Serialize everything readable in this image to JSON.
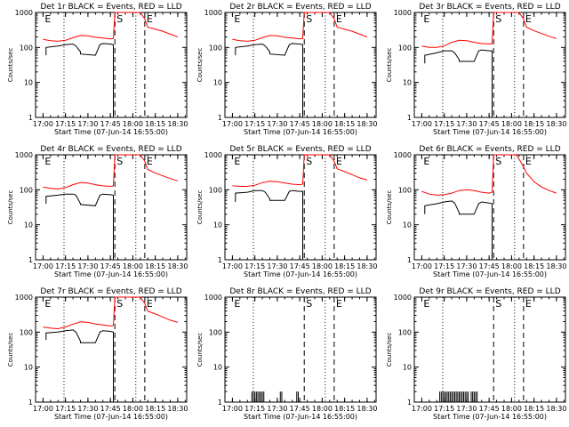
{
  "xlabel": "Start Time (07-Jun-14 16:55:00)",
  "ylabel": "Counts/sec",
  "x_ticks": [
    "17:00",
    "17:15",
    "17:30",
    "17:45",
    "18:00",
    "18:15",
    "18:30"
  ],
  "y_ticks": [
    "1",
    "10",
    "100",
    "1000"
  ],
  "colors": {
    "events": "#000000",
    "lld": "#ff0000",
    "axes": "#000000"
  },
  "chart_data": [
    {
      "type": "line",
      "title": "Det 1r BLACK = Events, RED = LLD",
      "markers": [
        {
          "label": "E",
          "time": "17:00",
          "style": "none"
        },
        {
          "label": "S",
          "time": "17:48",
          "style": "dashed"
        },
        {
          "label": "E",
          "time": "18:08",
          "style": "dashed"
        }
      ],
      "dotted_lines": [
        "17:14",
        "18:02"
      ],
      "series": [
        {
          "name": "LLD",
          "color": "#ff0000",
          "x": [
            "17:00",
            "17:05",
            "17:10",
            "17:15",
            "17:20",
            "17:25",
            "17:30",
            "17:35",
            "17:40",
            "17:45",
            "17:47",
            "17:48",
            "18:05",
            "18:08",
            "18:10",
            "18:15",
            "18:20",
            "18:25",
            "18:30"
          ],
          "y": [
            170,
            155,
            150,
            160,
            190,
            220,
            215,
            195,
            185,
            175,
            180,
            1000,
            1000,
            650,
            380,
            330,
            290,
            240,
            200
          ]
        },
        {
          "name": "Events",
          "color": "#000000",
          "x": [
            "17:02",
            "17:02",
            "17:10",
            "17:15",
            "17:20",
            "17:22",
            "17:25",
            "17:25",
            "17:35",
            "17:38",
            "17:40",
            "17:45",
            "17:47",
            "17:47",
            "17:47"
          ],
          "y": [
            60,
            100,
            110,
            120,
            125,
            110,
            75,
            65,
            60,
            120,
            130,
            125,
            120,
            1,
            1
          ]
        }
      ]
    },
    {
      "type": "line",
      "title": "Det 2r BLACK = Events, RED = LLD",
      "markers": [
        {
          "label": "E",
          "time": "17:00",
          "style": "none"
        },
        {
          "label": "S",
          "time": "17:48",
          "style": "dashed"
        },
        {
          "label": "E",
          "time": "18:08",
          "style": "dashed"
        }
      ],
      "dotted_lines": [
        "17:14",
        "18:02"
      ],
      "series": [
        {
          "name": "LLD",
          "color": "#ff0000",
          "x": [
            "17:00",
            "17:05",
            "17:10",
            "17:15",
            "17:20",
            "17:25",
            "17:30",
            "17:35",
            "17:40",
            "17:45",
            "17:47",
            "17:48",
            "18:05",
            "18:08",
            "18:10",
            "18:15",
            "18:20",
            "18:25",
            "18:30"
          ],
          "y": [
            170,
            155,
            150,
            160,
            190,
            220,
            215,
            195,
            185,
            175,
            180,
            1000,
            1000,
            650,
            380,
            330,
            290,
            240,
            200
          ]
        },
        {
          "name": "Events",
          "color": "#000000",
          "x": [
            "17:02",
            "17:02",
            "17:10",
            "17:15",
            "17:20",
            "17:22",
            "17:25",
            "17:25",
            "17:35",
            "17:38",
            "17:40",
            "17:45",
            "17:47",
            "17:47",
            "17:47"
          ],
          "y": [
            60,
            100,
            110,
            120,
            125,
            110,
            75,
            65,
            60,
            120,
            130,
            125,
            120,
            1,
            1
          ]
        }
      ]
    },
    {
      "type": "line",
      "title": "Det 3r BLACK = Events, RED = LLD",
      "markers": [
        {
          "label": "E",
          "time": "17:00",
          "style": "none"
        },
        {
          "label": "S",
          "time": "17:48",
          "style": "dashed"
        },
        {
          "label": "E",
          "time": "18:08",
          "style": "dashed"
        }
      ],
      "dotted_lines": [
        "17:14",
        "18:02"
      ],
      "series": [
        {
          "name": "LLD",
          "color": "#ff0000",
          "x": [
            "17:00",
            "17:05",
            "17:10",
            "17:15",
            "17:20",
            "17:25",
            "17:30",
            "17:35",
            "17:40",
            "17:45",
            "17:47",
            "17:48",
            "18:05",
            "18:08",
            "18:10",
            "18:15",
            "18:20",
            "18:25",
            "18:30"
          ],
          "y": [
            110,
            100,
            100,
            110,
            140,
            160,
            155,
            140,
            130,
            125,
            130,
            1000,
            1000,
            650,
            380,
            300,
            250,
            210,
            180
          ]
        },
        {
          "name": "Events",
          "color": "#000000",
          "x": [
            "17:02",
            "17:02",
            "17:10",
            "17:15",
            "17:20",
            "17:22",
            "17:25",
            "17:25",
            "17:35",
            "17:38",
            "17:40",
            "17:45",
            "17:47",
            "17:47",
            "17:47"
          ],
          "y": [
            35,
            60,
            70,
            80,
            80,
            70,
            45,
            40,
            40,
            80,
            85,
            80,
            80,
            1,
            1
          ]
        }
      ]
    },
    {
      "type": "line",
      "title": "Det 4r BLACK = Events, RED = LLD",
      "markers": [
        {
          "label": "E",
          "time": "17:00",
          "style": "none"
        },
        {
          "label": "S",
          "time": "17:48",
          "style": "dashed"
        },
        {
          "label": "E",
          "time": "18:08",
          "style": "dashed"
        }
      ],
      "dotted_lines": [
        "17:14",
        "18:02"
      ],
      "series": [
        {
          "name": "LLD",
          "color": "#ff0000",
          "x": [
            "17:00",
            "17:05",
            "17:10",
            "17:15",
            "17:20",
            "17:25",
            "17:30",
            "17:35",
            "17:40",
            "17:45",
            "17:47",
            "17:48",
            "18:05",
            "18:08",
            "18:10",
            "18:15",
            "18:20",
            "18:25",
            "18:30"
          ],
          "y": [
            120,
            110,
            105,
            115,
            140,
            160,
            155,
            140,
            130,
            125,
            130,
            1000,
            1000,
            650,
            380,
            300,
            250,
            210,
            180
          ]
        },
        {
          "name": "Events",
          "color": "#000000",
          "x": [
            "17:02",
            "17:02",
            "17:10",
            "17:15",
            "17:20",
            "17:22",
            "17:25",
            "17:25",
            "17:35",
            "17:38",
            "17:40",
            "17:45",
            "17:47",
            "17:47",
            "17:47"
          ],
          "y": [
            40,
            65,
            70,
            75,
            75,
            70,
            40,
            38,
            35,
            70,
            75,
            72,
            70,
            1,
            1
          ]
        }
      ]
    },
    {
      "type": "line",
      "title": "Det 5r BLACK = Events, RED = LLD",
      "markers": [
        {
          "label": "E",
          "time": "17:00",
          "style": "none"
        },
        {
          "label": "S",
          "time": "17:48",
          "style": "dashed"
        },
        {
          "label": "E",
          "time": "18:08",
          "style": "dashed"
        }
      ],
      "dotted_lines": [
        "17:14",
        "18:02"
      ],
      "series": [
        {
          "name": "LLD",
          "color": "#ff0000",
          "x": [
            "17:00",
            "17:05",
            "17:10",
            "17:15",
            "17:20",
            "17:25",
            "17:30",
            "17:35",
            "17:40",
            "17:45",
            "17:47",
            "17:48",
            "18:05",
            "18:08",
            "18:10",
            "18:15",
            "18:20",
            "18:25",
            "18:30"
          ],
          "y": [
            130,
            125,
            125,
            135,
            160,
            175,
            170,
            155,
            145,
            140,
            145,
            1000,
            1000,
            650,
            400,
            330,
            270,
            220,
            190
          ]
        },
        {
          "name": "Events",
          "color": "#000000",
          "x": [
            "17:02",
            "17:02",
            "17:10",
            "17:15",
            "17:20",
            "17:22",
            "17:25",
            "17:25",
            "17:35",
            "17:38",
            "17:40",
            "17:45",
            "17:47",
            "17:47",
            "17:47"
          ],
          "y": [
            45,
            80,
            85,
            95,
            95,
            85,
            55,
            50,
            50,
            90,
            95,
            90,
            90,
            1,
            1
          ]
        }
      ]
    },
    {
      "type": "line",
      "title": "Det 6r BLACK = Events, RED = LLD",
      "markers": [
        {
          "label": "E",
          "time": "17:00",
          "style": "none"
        },
        {
          "label": "S",
          "time": "17:48",
          "style": "dashed"
        },
        {
          "label": "E",
          "time": "18:08",
          "style": "dashed"
        }
      ],
      "dotted_lines": [
        "17:14",
        "18:02"
      ],
      "series": [
        {
          "name": "LLD",
          "color": "#ff0000",
          "x": [
            "17:00",
            "17:05",
            "17:10",
            "17:15",
            "17:20",
            "17:25",
            "17:30",
            "17:35",
            "17:40",
            "17:45",
            "17:47",
            "17:48",
            "18:03",
            "18:05",
            "18:08",
            "18:10",
            "18:15",
            "18:20",
            "18:25",
            "18:30"
          ],
          "y": [
            90,
            75,
            70,
            72,
            80,
            95,
            100,
            95,
            85,
            80,
            85,
            1000,
            1000,
            750,
            450,
            300,
            170,
            120,
            95,
            80
          ]
        },
        {
          "name": "Events",
          "color": "#000000",
          "x": [
            "17:02",
            "17:02",
            "17:10",
            "17:15",
            "17:20",
            "17:22",
            "17:25",
            "17:25",
            "17:35",
            "17:38",
            "17:40",
            "17:45",
            "17:47",
            "17:47",
            "17:47"
          ],
          "y": [
            20,
            35,
            40,
            45,
            48,
            42,
            22,
            20,
            20,
            40,
            45,
            42,
            40,
            1,
            1
          ]
        }
      ]
    },
    {
      "type": "line",
      "title": "Det 7r BLACK = Events, RED = LLD",
      "markers": [
        {
          "label": "E",
          "time": "17:00",
          "style": "none"
        },
        {
          "label": "S",
          "time": "17:48",
          "style": "dashed"
        },
        {
          "label": "E",
          "time": "18:08",
          "style": "dashed"
        }
      ],
      "dotted_lines": [
        "17:14",
        "18:02"
      ],
      "series": [
        {
          "name": "LLD",
          "color": "#ff0000",
          "x": [
            "17:00",
            "17:05",
            "17:10",
            "17:15",
            "17:20",
            "17:25",
            "17:30",
            "17:35",
            "17:40",
            "17:45",
            "17:47",
            "17:48",
            "18:05",
            "18:08",
            "18:10",
            "18:15",
            "18:20",
            "18:25",
            "18:30"
          ],
          "y": [
            140,
            130,
            125,
            140,
            170,
            195,
            190,
            170,
            160,
            150,
            155,
            1000,
            1000,
            650,
            400,
            330,
            270,
            220,
            190
          ]
        },
        {
          "name": "Events",
          "color": "#000000",
          "x": [
            "17:02",
            "17:02",
            "17:10",
            "17:15",
            "17:20",
            "17:22",
            "17:25",
            "17:25",
            "17:35",
            "17:38",
            "17:40",
            "17:45",
            "17:47",
            "17:47",
            "17:47"
          ],
          "y": [
            60,
            95,
            100,
            110,
            115,
            100,
            55,
            50,
            50,
            100,
            110,
            105,
            100,
            1,
            1
          ]
        }
      ]
    },
    {
      "type": "line",
      "title": "Det 8r BLACK = Events, RED = LLD",
      "markers": [
        {
          "label": "E",
          "time": "17:00",
          "style": "none"
        },
        {
          "label": "S",
          "time": "17:48",
          "style": "dashed"
        },
        {
          "label": "E",
          "time": "18:08",
          "style": "dashed"
        }
      ],
      "dotted_lines": [
        "17:14",
        "18:02"
      ],
      "series": [
        {
          "name": "Events",
          "color": "#000000",
          "spikes_x": [
            "17:13",
            "17:14",
            "17:15",
            "17:16",
            "17:17",
            "17:18",
            "17:19",
            "17:20",
            "17:21",
            "17:32",
            "17:33",
            "17:43",
            "17:44"
          ],
          "spike_value": 2
        }
      ]
    },
    {
      "type": "line",
      "title": "Det 9r BLACK = Events, RED = LLD",
      "markers": [
        {
          "label": "E",
          "time": "17:00",
          "style": "none"
        },
        {
          "label": "S",
          "time": "17:48",
          "style": "dashed"
        },
        {
          "label": "E",
          "time": "18:08",
          "style": "dashed"
        }
      ],
      "dotted_lines": [
        "17:14",
        "18:02"
      ],
      "series": [
        {
          "name": "Events",
          "color": "#000000",
          "spikes_x": [
            "17:12",
            "17:13",
            "17:14",
            "17:15",
            "17:16",
            "17:17",
            "17:18",
            "17:19",
            "17:20",
            "17:21",
            "17:22",
            "17:23",
            "17:24",
            "17:25",
            "17:26",
            "17:27",
            "17:28",
            "17:29",
            "17:30",
            "17:31",
            "17:33",
            "17:34",
            "17:35",
            "17:36",
            "17:37"
          ],
          "spike_value": 2
        }
      ]
    }
  ]
}
